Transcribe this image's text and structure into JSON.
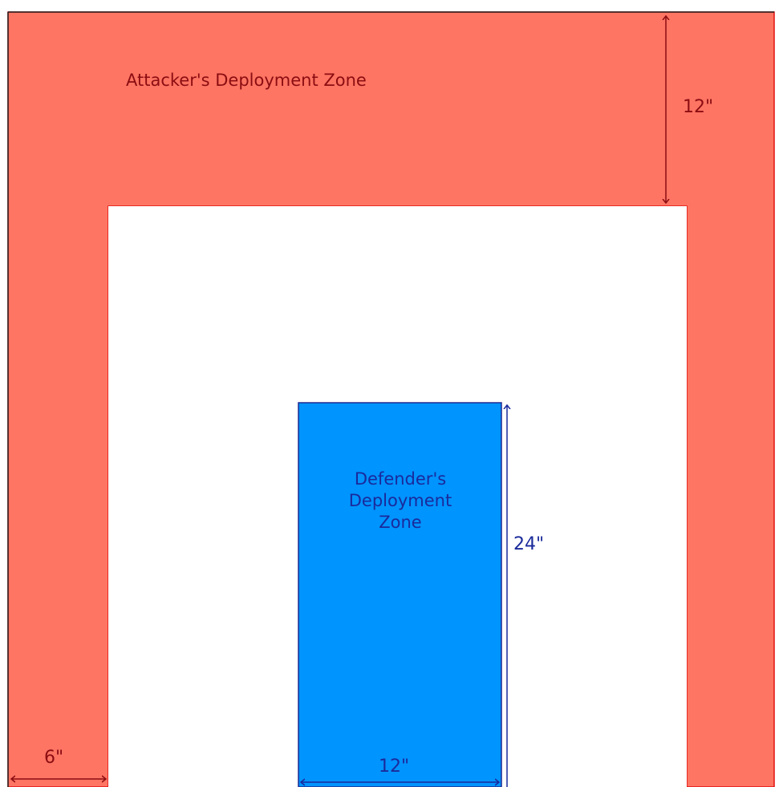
{
  "colors": {
    "attacker_zone": "#ff7563",
    "attacker_text": "#8b0d12",
    "attacker_border": "#e01010",
    "defender_zone": "#0094ff",
    "defender_text": "#1a2a9b",
    "defender_border": "#1e2a8f",
    "neutral": "#ffffff"
  },
  "attacker": {
    "zone_label": "Attacker's Deployment Zone",
    "depth_label": "12\"",
    "side_width_label": "6\""
  },
  "defender": {
    "zone_label_lines": [
      "Defender's",
      "Deployment",
      "Zone"
    ],
    "depth_label": "24\"",
    "width_label": "12\""
  }
}
